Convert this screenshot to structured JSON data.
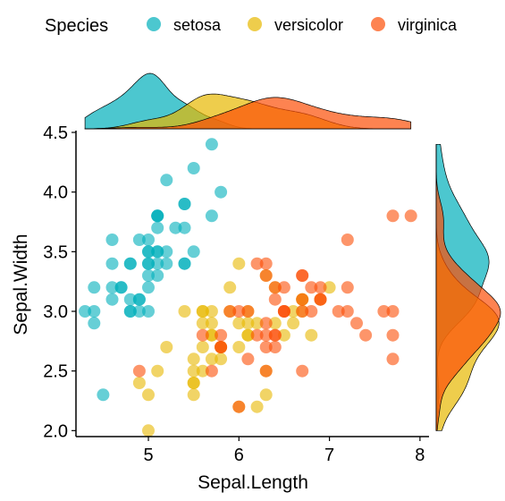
{
  "chart_data": {
    "type": "scatter",
    "title": "",
    "xlabel": "Sepal.Length",
    "ylabel": "Sepal.Width",
    "xlim": [
      4.2,
      8.1
    ],
    "ylim": [
      1.95,
      4.5
    ],
    "x_ticks": [
      5,
      6,
      7,
      8
    ],
    "y_ticks": [
      2.0,
      2.5,
      3.0,
      3.5,
      4.0,
      4.5
    ],
    "x_tick_labels": [
      "5",
      "6",
      "7",
      "8"
    ],
    "y_tick_labels": [
      "2.0",
      "2.5",
      "3.0",
      "3.5",
      "4.0",
      "4.5"
    ],
    "grid": false,
    "legend": {
      "title": "Species",
      "position": "top"
    },
    "marginal_plots": "density",
    "series": [
      {
        "name": "setosa",
        "color": "#00AFBB",
        "points": [
          [
            5.1,
            3.5
          ],
          [
            4.9,
            3.0
          ],
          [
            4.7,
            3.2
          ],
          [
            4.6,
            3.1
          ],
          [
            5.0,
            3.6
          ],
          [
            5.4,
            3.9
          ],
          [
            4.6,
            3.4
          ],
          [
            5.0,
            3.4
          ],
          [
            4.4,
            2.9
          ],
          [
            4.9,
            3.1
          ],
          [
            5.4,
            3.7
          ],
          [
            4.8,
            3.4
          ],
          [
            4.8,
            3.0
          ],
          [
            4.3,
            3.0
          ],
          [
            5.8,
            4.0
          ],
          [
            5.7,
            4.4
          ],
          [
            5.4,
            3.9
          ],
          [
            5.1,
            3.5
          ],
          [
            5.7,
            3.8
          ],
          [
            5.1,
            3.8
          ],
          [
            5.4,
            3.4
          ],
          [
            5.1,
            3.7
          ],
          [
            4.6,
            3.6
          ],
          [
            5.1,
            3.3
          ],
          [
            4.8,
            3.4
          ],
          [
            5.0,
            3.0
          ],
          [
            5.0,
            3.4
          ],
          [
            5.2,
            3.5
          ],
          [
            5.2,
            3.4
          ],
          [
            4.7,
            3.2
          ],
          [
            4.8,
            3.1
          ],
          [
            5.4,
            3.4
          ],
          [
            5.2,
            4.1
          ],
          [
            5.5,
            4.2
          ],
          [
            4.9,
            3.1
          ],
          [
            5.0,
            3.2
          ],
          [
            5.5,
            3.5
          ],
          [
            4.9,
            3.6
          ],
          [
            4.4,
            3.0
          ],
          [
            5.1,
            3.4
          ],
          [
            5.0,
            3.5
          ],
          [
            4.5,
            2.3
          ],
          [
            4.4,
            3.2
          ],
          [
            5.0,
            3.5
          ],
          [
            5.1,
            3.8
          ],
          [
            4.8,
            3.0
          ],
          [
            5.1,
            3.8
          ],
          [
            4.6,
            3.2
          ],
          [
            5.3,
            3.7
          ],
          [
            5.0,
            3.3
          ]
        ]
      },
      {
        "name": "versicolor",
        "color": "#E7B800",
        "points": [
          [
            7.0,
            3.2
          ],
          [
            6.4,
            3.2
          ],
          [
            6.9,
            3.1
          ],
          [
            5.5,
            2.3
          ],
          [
            6.5,
            2.8
          ],
          [
            5.7,
            2.8
          ],
          [
            6.3,
            3.3
          ],
          [
            4.9,
            2.4
          ],
          [
            6.6,
            2.9
          ],
          [
            5.2,
            2.7
          ],
          [
            5.0,
            2.0
          ],
          [
            5.9,
            3.0
          ],
          [
            6.0,
            2.2
          ],
          [
            6.1,
            2.9
          ],
          [
            5.6,
            2.9
          ],
          [
            6.7,
            3.1
          ],
          [
            5.6,
            3.0
          ],
          [
            5.8,
            2.7
          ],
          [
            6.2,
            2.2
          ],
          [
            5.6,
            2.5
          ],
          [
            5.9,
            3.2
          ],
          [
            6.1,
            2.8
          ],
          [
            6.3,
            2.5
          ],
          [
            6.1,
            2.8
          ],
          [
            6.4,
            2.9
          ],
          [
            6.6,
            3.0
          ],
          [
            6.8,
            2.8
          ],
          [
            6.7,
            3.0
          ],
          [
            6.0,
            2.9
          ],
          [
            5.7,
            2.6
          ],
          [
            5.5,
            2.4
          ],
          [
            5.5,
            2.4
          ],
          [
            5.8,
            2.7
          ],
          [
            6.0,
            2.7
          ],
          [
            5.4,
            3.0
          ],
          [
            6.0,
            3.4
          ],
          [
            6.7,
            3.1
          ],
          [
            6.3,
            2.3
          ],
          [
            5.6,
            3.0
          ],
          [
            5.5,
            2.5
          ],
          [
            5.5,
            2.6
          ],
          [
            6.1,
            3.0
          ],
          [
            5.8,
            2.6
          ],
          [
            5.0,
            2.3
          ],
          [
            5.6,
            2.7
          ],
          [
            5.7,
            3.0
          ],
          [
            5.7,
            2.9
          ],
          [
            6.2,
            2.9
          ],
          [
            5.1,
            2.5
          ],
          [
            5.7,
            2.8
          ]
        ]
      },
      {
        "name": "virginica",
        "color": "#FC4E07",
        "points": [
          [
            6.3,
            3.3
          ],
          [
            5.8,
            2.7
          ],
          [
            7.1,
            3.0
          ],
          [
            6.3,
            2.9
          ],
          [
            6.5,
            3.0
          ],
          [
            7.6,
            3.0
          ],
          [
            4.9,
            2.5
          ],
          [
            7.3,
            2.9
          ],
          [
            6.7,
            2.5
          ],
          [
            7.2,
            3.6
          ],
          [
            6.5,
            3.2
          ],
          [
            6.4,
            2.7
          ],
          [
            6.8,
            3.0
          ],
          [
            5.7,
            2.5
          ],
          [
            5.8,
            2.8
          ],
          [
            6.4,
            3.2
          ],
          [
            6.5,
            3.0
          ],
          [
            7.7,
            3.8
          ],
          [
            7.7,
            2.6
          ],
          [
            6.0,
            2.2
          ],
          [
            6.9,
            3.2
          ],
          [
            5.6,
            2.8
          ],
          [
            7.7,
            2.8
          ],
          [
            6.3,
            2.7
          ],
          [
            6.7,
            3.3
          ],
          [
            7.2,
            3.2
          ],
          [
            6.2,
            2.8
          ],
          [
            6.1,
            3.0
          ],
          [
            6.4,
            2.8
          ],
          [
            7.2,
            3.0
          ],
          [
            7.4,
            2.8
          ],
          [
            7.9,
            3.8
          ],
          [
            6.4,
            2.8
          ],
          [
            6.3,
            2.8
          ],
          [
            6.1,
            2.6
          ],
          [
            7.7,
            3.0
          ],
          [
            6.3,
            3.4
          ],
          [
            6.4,
            3.1
          ],
          [
            6.0,
            3.0
          ],
          [
            6.9,
            3.1
          ],
          [
            6.7,
            3.1
          ],
          [
            6.9,
            3.1
          ],
          [
            5.8,
            2.7
          ],
          [
            6.8,
            3.2
          ],
          [
            6.7,
            3.3
          ],
          [
            6.7,
            3.0
          ],
          [
            6.3,
            2.5
          ],
          [
            6.5,
            3.0
          ],
          [
            6.2,
            3.4
          ],
          [
            5.9,
            3.0
          ]
        ]
      }
    ]
  }
}
